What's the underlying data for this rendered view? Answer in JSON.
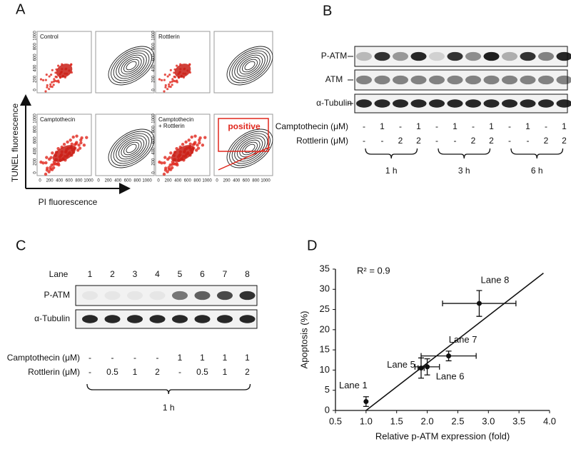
{
  "panel_a": {
    "label": "A",
    "plots": [
      {
        "title": [
          "Control"
        ]
      },
      {
        "title": [
          "Rottlerin"
        ]
      },
      {
        "title": [
          "Camptothecin"
        ]
      },
      {
        "title": [
          "Camptothecin",
          "+ Rottlerin"
        ]
      }
    ],
    "gate_label": "positive",
    "tick_labels": [
      "0",
      "200",
      "400",
      "600",
      "800",
      "1000"
    ],
    "y_axis_label": "TUNEL fluorescence",
    "x_axis_label": "PI fluorescence"
  },
  "panel_b": {
    "label": "B",
    "rows": [
      "P-ATM",
      "ATM",
      "α-Tubulin"
    ],
    "treatments": [
      {
        "name": "Camptothecin (μM)",
        "values": [
          "-",
          "1",
          "-",
          "1",
          "-",
          "1",
          "-",
          "1",
          "-",
          "1",
          "-",
          "1"
        ]
      },
      {
        "name": "Rottlerin (μM)",
        "values": [
          "-",
          "-",
          "2",
          "2",
          "-",
          "-",
          "2",
          "2",
          "-",
          "-",
          "2",
          "2"
        ]
      }
    ],
    "timepoints": [
      "1 h",
      "3 h",
      "6 h"
    ]
  },
  "panel_c": {
    "label": "C",
    "lane_title": "Lane",
    "lanes": [
      "1",
      "2",
      "3",
      "4",
      "5",
      "6",
      "7",
      "8"
    ],
    "rows": [
      "P-ATM",
      "α-Tubulin"
    ],
    "treatments": [
      {
        "name": "Camptothecin (μM)",
        "values": [
          "-",
          "-",
          "-",
          "-",
          "1",
          "1",
          "1",
          "1"
        ]
      },
      {
        "name": "Rottlerin (μM)",
        "values": [
          "-",
          "0.5",
          "1",
          "2",
          "-",
          "0.5",
          "1",
          "2"
        ]
      }
    ],
    "timepoints": [
      "1 h"
    ]
  },
  "chart_data": {
    "type": "scatter",
    "label": "D",
    "annotation": "R² = 0.9",
    "xlabel": "Relative p-ATM expression (fold)",
    "ylabel": "Apoptosis (%)",
    "point_labels": [
      "Lane 1",
      "Lane 5",
      "Lane 6",
      "Lane 7",
      "Lane 8"
    ],
    "x": [
      1.0,
      1.9,
      2.0,
      2.35,
      2.85
    ],
    "x_errors": [
      0,
      0.05,
      0.2,
      0.45,
      0.6
    ],
    "values": [
      2.2,
      10.5,
      10.8,
      13.5,
      26.5
    ],
    "errors": [
      1.2,
      2.5,
      2,
      1.2,
      3.2
    ],
    "fit": {
      "x": [
        1.0,
        3.9
      ],
      "y": [
        0,
        34
      ]
    },
    "xlim": [
      0.5,
      4.0
    ],
    "xticks": [
      {
        "value": 0.5,
        "label": "0.5"
      },
      {
        "value": 1,
        "label": "1.0"
      },
      {
        "value": 1.5,
        "label": "1.5"
      },
      {
        "value": 2,
        "label": "2.0"
      },
      {
        "value": 2.5,
        "label": "2.5"
      },
      {
        "value": 3,
        "label": "3.0"
      },
      {
        "value": 3.5,
        "label": "3.5"
      },
      {
        "value": 4,
        "label": "4.0"
      }
    ],
    "ylim": [
      0,
      35
    ],
    "yticks": [
      0,
      5,
      10,
      15,
      20,
      25,
      30,
      35
    ]
  }
}
